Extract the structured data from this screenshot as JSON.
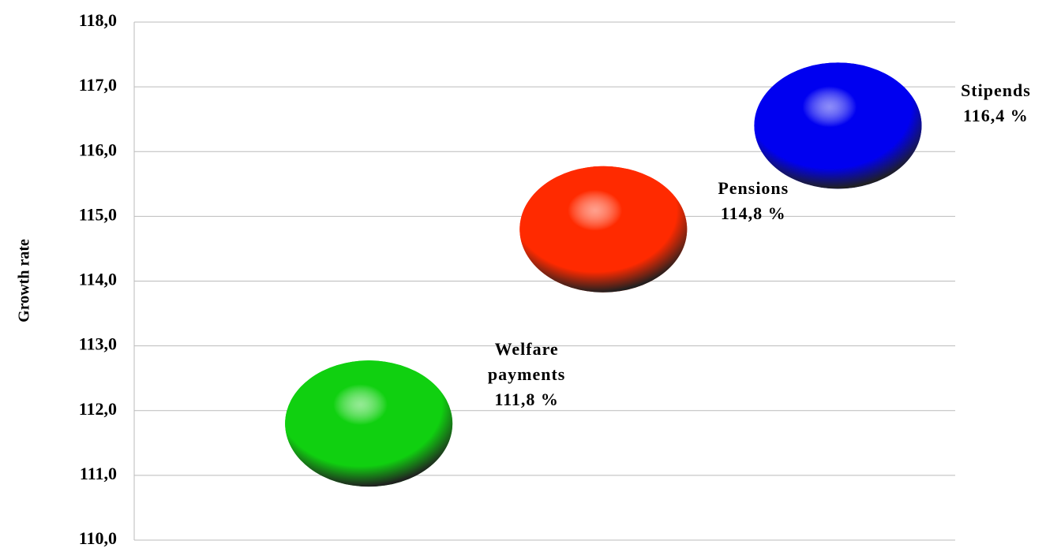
{
  "chart_data": {
    "type": "bubble",
    "ylabel": "Growth rate",
    "categories": [
      "Welfare payments",
      "Pensions",
      "Stipends"
    ],
    "values": [
      111.8,
      114.8,
      116.4
    ],
    "value_labels": [
      "111,8 %",
      "114,8 %",
      "116,4 %"
    ],
    "colors": [
      "#10d010",
      "#ff2a00",
      "#0000f0"
    ],
    "ylim": [
      110,
      118
    ],
    "yticks": [
      {
        "value": 110,
        "label": "110,0"
      },
      {
        "value": 111,
        "label": "111,0"
      },
      {
        "value": 112,
        "label": "112,0"
      },
      {
        "value": 113,
        "label": "113,0"
      },
      {
        "value": 114,
        "label": "114,0"
      },
      {
        "value": 115,
        "label": "115,0"
      },
      {
        "value": 116,
        "label": "116,0"
      },
      {
        "value": 117,
        "label": "117,0"
      },
      {
        "value": 118,
        "label": "118,0"
      }
    ],
    "grid": true
  }
}
